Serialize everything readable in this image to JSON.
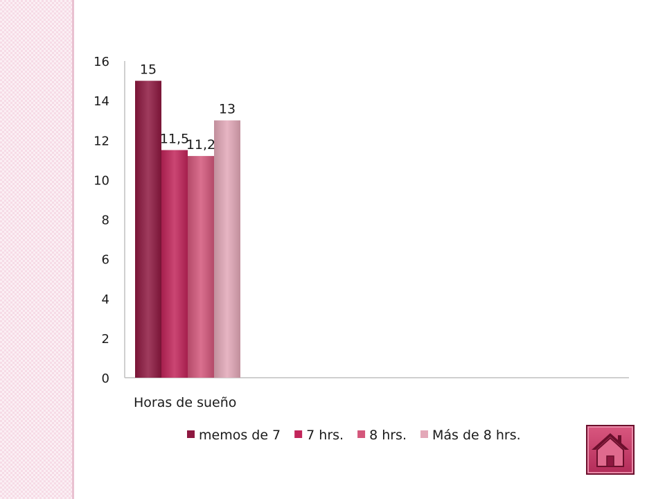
{
  "chart_data": {
    "type": "bar",
    "categories": [
      "Horas de sueño"
    ],
    "series": [
      {
        "name": "memos de 7",
        "values": [
          15
        ],
        "label": "15",
        "color": "#8e1840"
      },
      {
        "name": "7 hrs.",
        "values": [
          11.5
        ],
        "label": "11,5",
        "color": "#c2255a"
      },
      {
        "name": "8 hrs.",
        "values": [
          11.2
        ],
        "label": "11,2",
        "color": "#d4577b"
      },
      {
        "name": "Más de 8 hrs.",
        "values": [
          13
        ],
        "label": "13",
        "color": "#e3a8b8"
      }
    ],
    "ylim": [
      0,
      16
    ],
    "yticks": [
      "0",
      "2",
      "4",
      "6",
      "8",
      "10",
      "12",
      "14",
      "16"
    ],
    "legend_position": "bottom",
    "grid": false
  },
  "theme": {
    "side_band_color": "#f6dbe6",
    "accent": "#c2255a"
  },
  "nav": {
    "home_icon": "home-icon"
  }
}
